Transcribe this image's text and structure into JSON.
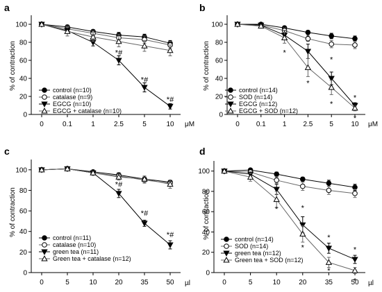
{
  "chart_data": [
    {
      "panel": "a",
      "type": "line",
      "categories": [
        "0",
        "0.1",
        "1",
        "2.5",
        "5",
        "10"
      ],
      "x_unit": "μM",
      "ylabel": "% of contraction",
      "ylim": [
        0,
        110
      ],
      "yticks": [
        "0",
        "20",
        "40",
        "60",
        "80",
        "100"
      ],
      "series": [
        {
          "name": "control (n=10)",
          "marker": "circle-filled",
          "values": [
            100,
            97,
            92,
            88,
            86,
            79
          ],
          "err": [
            0,
            2,
            2,
            3,
            3,
            3
          ]
        },
        {
          "name": "catalase (n=9)",
          "marker": "circle-open",
          "values": [
            100,
            95,
            90,
            85,
            83,
            77
          ],
          "err": [
            0,
            3,
            3,
            4,
            4,
            4
          ]
        },
        {
          "name": "EGCG (n=10)",
          "marker": "triangle-down-filled",
          "values": [
            100,
            93,
            80,
            60,
            30,
            9
          ],
          "err": [
            0,
            3,
            4,
            5,
            5,
            3
          ]
        },
        {
          "name": "EGCG + catalase (n=10)",
          "marker": "triangle-up-open",
          "values": [
            100,
            92,
            86,
            81,
            76,
            71
          ],
          "err": [
            0,
            5,
            5,
            6,
            6,
            6
          ]
        }
      ],
      "annotations": [
        {
          "x": "2.5",
          "y": 69,
          "text": "*#"
        },
        {
          "x": "5",
          "y": 39,
          "text": "*#"
        },
        {
          "x": "10",
          "y": 17,
          "text": "*#"
        }
      ]
    },
    {
      "panel": "b",
      "type": "line",
      "categories": [
        "0",
        "0.1",
        "1",
        "2.5",
        "5",
        "10"
      ],
      "x_unit": "μM",
      "ylabel": "% of contraction",
      "ylim": [
        0,
        110
      ],
      "yticks": [
        "0",
        "20",
        "40",
        "60",
        "80",
        "100"
      ],
      "series": [
        {
          "name": "control (n=14)",
          "marker": "circle-filled",
          "values": [
            100,
            100,
            96,
            91,
            87,
            84
          ],
          "err": [
            0,
            1,
            2,
            2,
            3,
            3
          ]
        },
        {
          "name": "SOD (n=14)",
          "marker": "circle-open",
          "values": [
            100,
            99,
            93,
            84,
            78,
            77
          ],
          "err": [
            0,
            1,
            3,
            3,
            4,
            4
          ]
        },
        {
          "name": "EGCG (n=12)",
          "marker": "triangle-down-filled",
          "values": [
            100,
            99,
            88,
            70,
            40,
            10
          ],
          "err": [
            0,
            1,
            5,
            8,
            7,
            3
          ]
        },
        {
          "name": "EGCG + SOD (n=12)",
          "marker": "triangle-up-open",
          "values": [
            100,
            98,
            85,
            52,
            30,
            7
          ],
          "err": [
            0,
            1,
            6,
            10,
            8,
            3
          ]
        }
      ],
      "annotations": [
        {
          "x": "1",
          "y": 69,
          "text": "*"
        },
        {
          "x": "2.5",
          "y": 87,
          "text": "*"
        },
        {
          "x": "2.5",
          "y": 35,
          "text": "*"
        },
        {
          "x": "5",
          "y": 61,
          "text": "*"
        },
        {
          "x": "5",
          "y": 12,
          "text": "*"
        },
        {
          "x": "10",
          "y": 19,
          "text": "*"
        },
        {
          "x": "10",
          "y": -4,
          "text": "*"
        }
      ]
    },
    {
      "panel": "c",
      "type": "line",
      "categories": [
        "0",
        "5",
        "10",
        "20",
        "35",
        "50"
      ],
      "x_unit": "µl",
      "ylabel": "% of contraction",
      "ylim": [
        0,
        110
      ],
      "yticks": [
        "0",
        "20",
        "40",
        "60",
        "80",
        "100"
      ],
      "series": [
        {
          "name": "control (n=11)",
          "marker": "circle-filled",
          "values": [
            100,
            101,
            98,
            95,
            91,
            88
          ],
          "err": [
            0,
            1,
            1,
            2,
            2,
            2
          ]
        },
        {
          "name": "catalase (n=10)",
          "marker": "circle-open",
          "values": [
            100,
            101,
            97,
            94,
            90,
            87
          ],
          "err": [
            0,
            1,
            2,
            2,
            3,
            3
          ]
        },
        {
          "name": "green tea (n=11)",
          "marker": "triangle-down-filled",
          "values": [
            100,
            101,
            97,
            77,
            48,
            27
          ],
          "err": [
            0,
            1,
            2,
            4,
            3,
            4
          ]
        },
        {
          "name": "Green tea + catalase (n=12)",
          "marker": "triangle-up-open",
          "values": [
            100,
            101,
            97,
            93,
            91,
            86
          ],
          "err": [
            0,
            1,
            2,
            3,
            3,
            4
          ]
        }
      ],
      "annotations": [
        {
          "x": "20",
          "y": 86,
          "text": "*#"
        },
        {
          "x": "35",
          "y": 58,
          "text": "*#"
        },
        {
          "x": "50",
          "y": 37,
          "text": "*#"
        }
      ]
    },
    {
      "panel": "d",
      "type": "line",
      "categories": [
        "0",
        "5",
        "10",
        "20",
        "35",
        "50"
      ],
      "x_unit": "µl",
      "ylabel": "% of contraction",
      "ylim": [
        0,
        110
      ],
      "yticks": [
        "0",
        "20",
        "40",
        "60",
        "80",
        "100"
      ],
      "series": [
        {
          "name": "control (n=14)",
          "marker": "circle-filled",
          "values": [
            100,
            101,
            97,
            92,
            88,
            84
          ],
          "err": [
            0,
            1,
            2,
            2,
            3,
            3
          ]
        },
        {
          "name": "SOD (n=14)",
          "marker": "circle-open",
          "values": [
            100,
            99,
            91,
            85,
            81,
            78
          ],
          "err": [
            0,
            2,
            3,
            4,
            4,
            4
          ]
        },
        {
          "name": "green tea (n=12)",
          "marker": "triangle-down-filled",
          "values": [
            100,
            97,
            82,
            47,
            24,
            13
          ],
          "err": [
            0,
            2,
            5,
            8,
            5,
            4
          ]
        },
        {
          "name": "Green tea + SOD (n=12)",
          "marker": "triangle-up-open",
          "values": [
            100,
            94,
            72,
            38,
            10,
            2
          ],
          "err": [
            0,
            4,
            8,
            8,
            5,
            3
          ]
        }
      ],
      "annotations": [
        {
          "x": "10",
          "y": 63,
          "text": "*"
        },
        {
          "x": "20",
          "y": 64,
          "text": "*"
        },
        {
          "x": "20",
          "y": 25,
          "text": "*"
        },
        {
          "x": "35",
          "y": 35,
          "text": "*"
        },
        {
          "x": "35",
          "y": 2,
          "text": "*"
        },
        {
          "x": "50",
          "y": 23,
          "text": "*"
        },
        {
          "x": "50",
          "y": -8,
          "text": "*"
        }
      ]
    }
  ]
}
